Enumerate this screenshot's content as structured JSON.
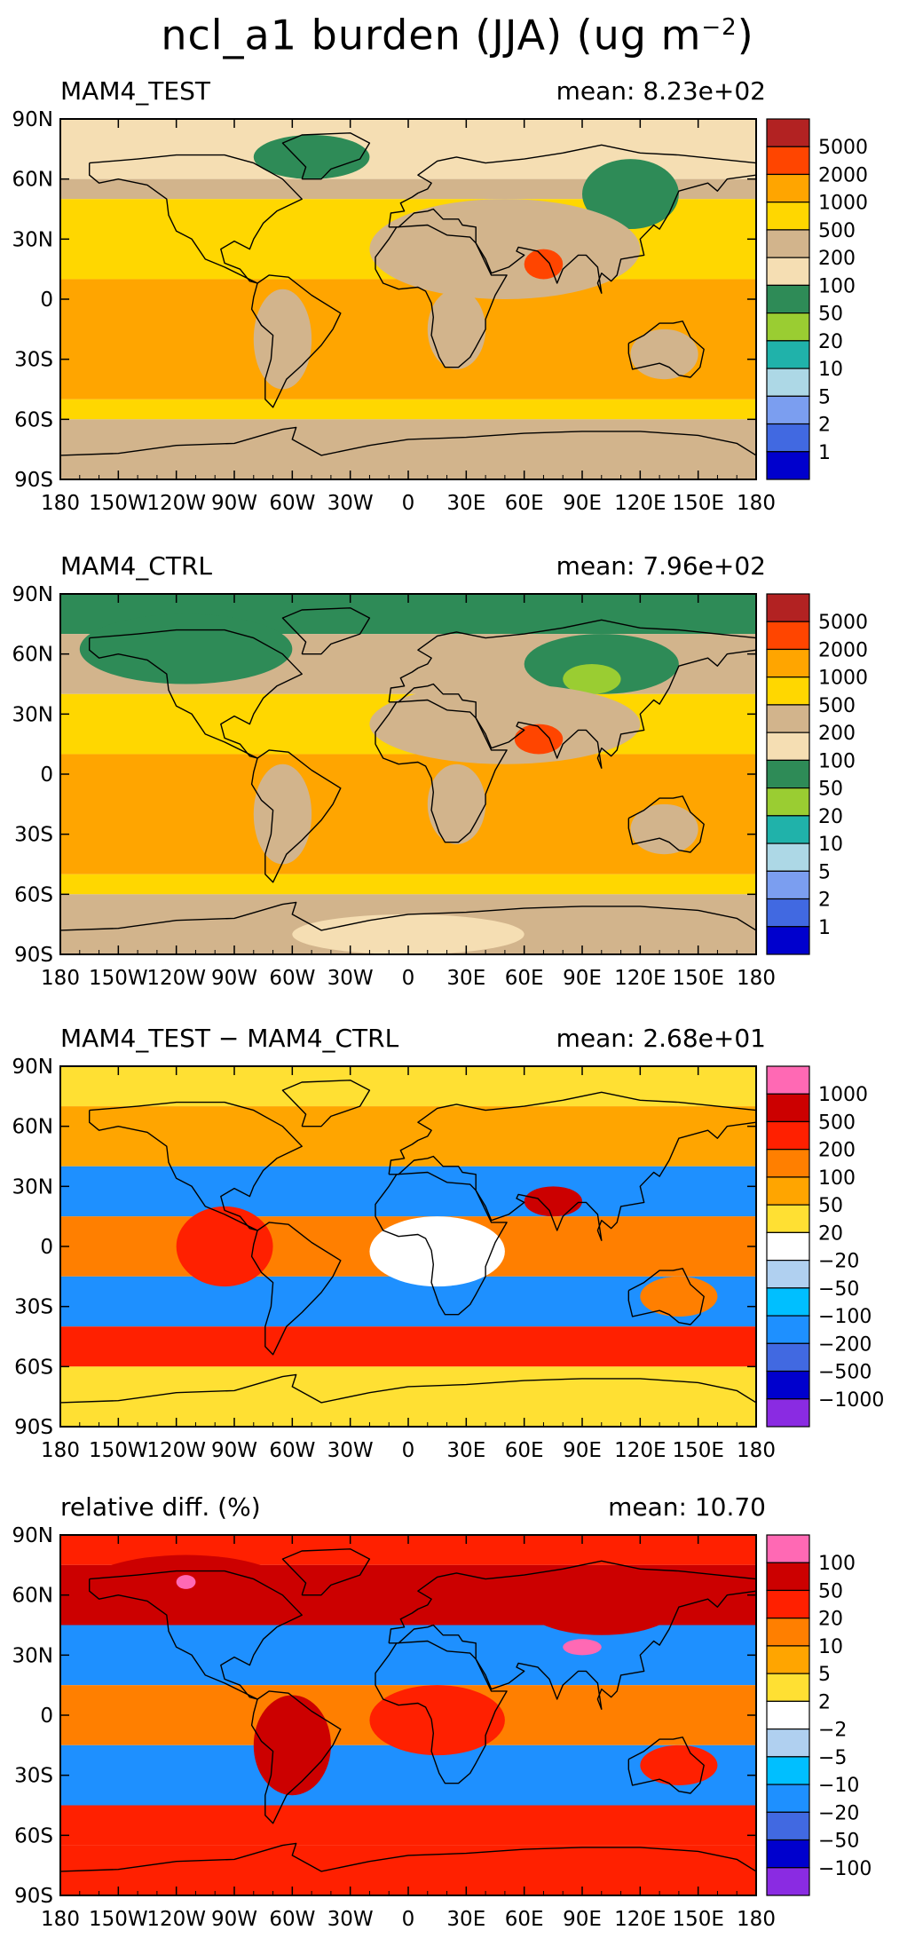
{
  "figure_title": "ncl_a1 burden (JJA) (ug m",
  "figure_title_sup": "−2",
  "figure_title_close": ")",
  "chart_data": [
    {
      "type": "heatmap",
      "title": "MAM4_TEST",
      "mean_label": "mean: 8.23e+02",
      "x_ticks": [
        "180",
        "150W",
        "120W",
        "90W",
        "60W",
        "30W",
        "0",
        "30E",
        "60E",
        "90E",
        "120E",
        "150E",
        "180"
      ],
      "y_ticks": [
        "90N",
        "60N",
        "30N",
        "0",
        "30S",
        "60S",
        "90S"
      ],
      "xlim": [
        -180,
        180
      ],
      "ylim": [
        -90,
        90
      ],
      "colorbar_labels": [
        "5000",
        "2000",
        "1000",
        "500",
        "200",
        "100",
        "50",
        "20",
        "10",
        "5",
        "2",
        "1"
      ],
      "colorbar_colors": [
        "#b22222",
        "#ff4500",
        "#ffa500",
        "#ffd700",
        "#d2b48c",
        "#f5deb3",
        "#2e8b57",
        "#9acd32",
        "#20b2aa",
        "#add8e6",
        "#7b9ef0",
        "#4169e1",
        "#0000cd"
      ],
      "zonal_bands": [
        {
          "lat": [
            60,
            90
          ],
          "color_index": 5
        },
        {
          "lat": [
            50,
            60
          ],
          "color_index": 4
        },
        {
          "lat": [
            10,
            50
          ],
          "color_index": 3
        },
        {
          "lat": [
            -50,
            10
          ],
          "color_index": 2
        },
        {
          "lat": [
            -60,
            -50
          ],
          "color_index": 3
        },
        {
          "lat": [
            -90,
            -60
          ],
          "color_index": 4
        }
      ],
      "regions": [
        {
          "lon": [
            -80,
            -20
          ],
          "lat": [
            60,
            82
          ],
          "color_index": 6
        },
        {
          "lon": [
            90,
            140
          ],
          "lat": [
            35,
            70
          ],
          "color_index": 6
        },
        {
          "lon": [
            -20,
            120
          ],
          "lat": [
            0,
            50
          ],
          "color_index": 4
        },
        {
          "lon": [
            60,
            80
          ],
          "lat": [
            10,
            25
          ],
          "color_index": 1
        },
        {
          "lon": [
            -80,
            -50
          ],
          "lat": [
            -45,
            5
          ],
          "color_index": 4
        },
        {
          "lon": [
            10,
            40
          ],
          "lat": [
            -35,
            5
          ],
          "color_index": 4
        },
        {
          "lon": [
            115,
            150
          ],
          "lat": [
            -40,
            -15
          ],
          "color_index": 4
        }
      ]
    },
    {
      "type": "heatmap",
      "title": "MAM4_CTRL",
      "mean_label": "mean: 7.96e+02",
      "x_ticks": [
        "180",
        "150W",
        "120W",
        "90W",
        "60W",
        "30W",
        "0",
        "30E",
        "60E",
        "90E",
        "120E",
        "150E",
        "180"
      ],
      "y_ticks": [
        "90N",
        "60N",
        "30N",
        "0",
        "30S",
        "60S",
        "90S"
      ],
      "xlim": [
        -180,
        180
      ],
      "ylim": [
        -90,
        90
      ],
      "colorbar_labels": [
        "5000",
        "2000",
        "1000",
        "500",
        "200",
        "100",
        "50",
        "20",
        "10",
        "5",
        "2",
        "1"
      ],
      "colorbar_colors": [
        "#b22222",
        "#ff4500",
        "#ffa500",
        "#ffd700",
        "#d2b48c",
        "#f5deb3",
        "#2e8b57",
        "#9acd32",
        "#20b2aa",
        "#add8e6",
        "#7b9ef0",
        "#4169e1",
        "#0000cd"
      ],
      "zonal_bands": [
        {
          "lat": [
            70,
            90
          ],
          "color_index": 6
        },
        {
          "lat": [
            40,
            70
          ],
          "color_index": 4
        },
        {
          "lat": [
            10,
            40
          ],
          "color_index": 3
        },
        {
          "lat": [
            -50,
            10
          ],
          "color_index": 2
        },
        {
          "lat": [
            -60,
            -50
          ],
          "color_index": 3
        },
        {
          "lat": [
            -90,
            -60
          ],
          "color_index": 4
        }
      ],
      "regions": [
        {
          "lon": [
            -170,
            -60
          ],
          "lat": [
            45,
            80
          ],
          "color_index": 6
        },
        {
          "lon": [
            60,
            140
          ],
          "lat": [
            40,
            70
          ],
          "color_index": 6
        },
        {
          "lon": [
            80,
            110
          ],
          "lat": [
            40,
            55
          ],
          "color_index": 7
        },
        {
          "lon": [
            -20,
            120
          ],
          "lat": [
            5,
            45
          ],
          "color_index": 4
        },
        {
          "lon": [
            55,
            80
          ],
          "lat": [
            10,
            25
          ],
          "color_index": 1
        },
        {
          "lon": [
            -80,
            -50
          ],
          "lat": [
            -45,
            5
          ],
          "color_index": 4
        },
        {
          "lon": [
            10,
            40
          ],
          "lat": [
            -35,
            5
          ],
          "color_index": 4
        },
        {
          "lon": [
            115,
            150
          ],
          "lat": [
            -40,
            -15
          ],
          "color_index": 4
        },
        {
          "lon": [
            -60,
            60
          ],
          "lat": [
            -90,
            -70
          ],
          "color_index": 5
        }
      ]
    },
    {
      "type": "heatmap",
      "title": "MAM4_TEST − MAM4_CTRL",
      "mean_label": "mean: 2.68e+01",
      "x_ticks": [
        "180",
        "150W",
        "120W",
        "90W",
        "60W",
        "30W",
        "0",
        "30E",
        "60E",
        "90E",
        "120E",
        "150E",
        "180"
      ],
      "y_ticks": [
        "90N",
        "60N",
        "30N",
        "0",
        "30S",
        "60S",
        "90S"
      ],
      "xlim": [
        -180,
        180
      ],
      "ylim": [
        -90,
        90
      ],
      "colorbar_labels": [
        "1000",
        "500",
        "200",
        "100",
        "50",
        "20",
        "−20",
        "−50",
        "−100",
        "−200",
        "−500",
        "−1000"
      ],
      "colorbar_colors": [
        "#ff69b4",
        "#cc0000",
        "#ff2000",
        "#ff7f00",
        "#ffa500",
        "#ffe033",
        "#ffffff",
        "#b0d0f0",
        "#00bfff",
        "#1e90ff",
        "#4169e1",
        "#0000cd",
        "#8a2be2"
      ],
      "zonal_bands": [
        {
          "lat": [
            70,
            90
          ],
          "color_index": 5
        },
        {
          "lat": [
            40,
            70
          ],
          "color_index": 4
        },
        {
          "lat": [
            15,
            40
          ],
          "color_index": 9
        },
        {
          "lat": [
            -15,
            15
          ],
          "color_index": 3
        },
        {
          "lat": [
            -40,
            -15
          ],
          "color_index": 9
        },
        {
          "lat": [
            -60,
            -40
          ],
          "color_index": 2
        },
        {
          "lat": [
            -90,
            -60
          ],
          "color_index": 5
        }
      ],
      "regions": [
        {
          "lon": [
            -120,
            -70
          ],
          "lat": [
            -20,
            20
          ],
          "color_index": 2
        },
        {
          "lon": [
            60,
            90
          ],
          "lat": [
            15,
            30
          ],
          "color_index": 1
        },
        {
          "lon": [
            -20,
            50
          ],
          "lat": [
            -20,
            15
          ],
          "color_index": 6
        },
        {
          "lon": [
            120,
            160
          ],
          "lat": [
            -35,
            -15
          ],
          "color_index": 3
        }
      ]
    },
    {
      "type": "heatmap",
      "title": "relative diff. (%)",
      "mean_label": "mean: 10.70",
      "x_ticks": [
        "180",
        "150W",
        "120W",
        "90W",
        "60W",
        "30W",
        "0",
        "30E",
        "60E",
        "90E",
        "120E",
        "150E",
        "180"
      ],
      "y_ticks": [
        "90N",
        "60N",
        "30N",
        "0",
        "30S",
        "60S",
        "90S"
      ],
      "xlim": [
        -180,
        180
      ],
      "ylim": [
        -90,
        90
      ],
      "colorbar_labels": [
        "100",
        "50",
        "20",
        "10",
        "5",
        "2",
        "−2",
        "−5",
        "−10",
        "−20",
        "−50",
        "−100"
      ],
      "colorbar_colors": [
        "#ff69b4",
        "#cc0000",
        "#ff2000",
        "#ff7f00",
        "#ffa500",
        "#ffe033",
        "#ffffff",
        "#b0d0f0",
        "#00bfff",
        "#1e90ff",
        "#4169e1",
        "#0000cd",
        "#8a2be2"
      ],
      "zonal_bands": [
        {
          "lat": [
            75,
            90
          ],
          "color_index": 2
        },
        {
          "lat": [
            45,
            75
          ],
          "color_index": 1
        },
        {
          "lat": [
            15,
            45
          ],
          "color_index": 9
        },
        {
          "lat": [
            -15,
            15
          ],
          "color_index": 3
        },
        {
          "lat": [
            -45,
            -15
          ],
          "color_index": 9
        },
        {
          "lat": [
            -65,
            -45
          ],
          "color_index": 2
        },
        {
          "lat": [
            -90,
            -65
          ],
          "color_index": 2
        }
      ],
      "regions": [
        {
          "lon": [
            -170,
            -60
          ],
          "lat": [
            45,
            80
          ],
          "color_index": 1
        },
        {
          "lon": [
            -120,
            -110
          ],
          "lat": [
            63,
            70
          ],
          "color_index": 0
        },
        {
          "lon": [
            80,
            100
          ],
          "lat": [
            30,
            38
          ],
          "color_index": 0
        },
        {
          "lon": [
            60,
            140
          ],
          "lat": [
            40,
            70
          ],
          "color_index": 1
        },
        {
          "lon": [
            -80,
            -40
          ],
          "lat": [
            -40,
            10
          ],
          "color_index": 1
        },
        {
          "lon": [
            -20,
            50
          ],
          "lat": [
            -20,
            15
          ],
          "color_index": 2
        },
        {
          "lon": [
            120,
            160
          ],
          "lat": [
            -35,
            -15
          ],
          "color_index": 2
        }
      ]
    }
  ]
}
